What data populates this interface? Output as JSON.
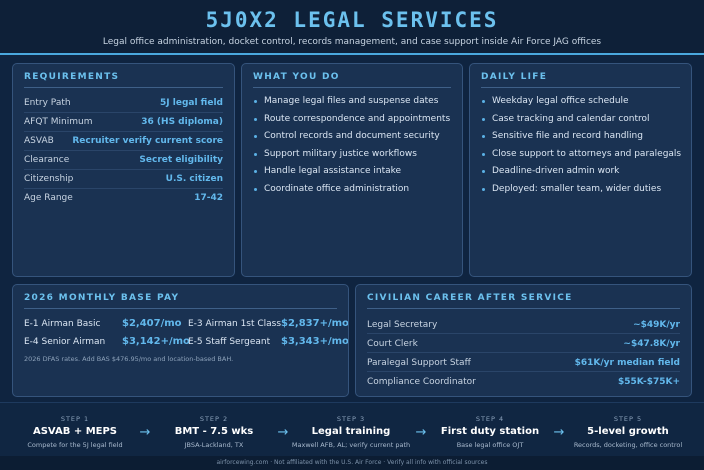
{
  "header": {
    "title": "5J0X2 LEGAL SERVICES",
    "subtitle": "Legal office administration, docket control, records management, and case support inside Air Force JAG offices"
  },
  "requirements": {
    "title": "REQUIREMENTS",
    "rows": [
      {
        "label": "Entry Path",
        "value": "5J legal field"
      },
      {
        "label": "AFQT Minimum",
        "value": "36 (HS diploma)"
      },
      {
        "label": "ASVAB",
        "value": "Recruiter verify current score"
      },
      {
        "label": "Clearance",
        "value": "Secret eligibility"
      },
      {
        "label": "Citizenship",
        "value": "U.S. citizen"
      },
      {
        "label": "Age Range",
        "value": "17-42"
      }
    ]
  },
  "what_you_do": {
    "title": "WHAT YOU DO",
    "items": [
      "Manage legal files and suspense dates",
      "Route correspondence and appointments",
      "Control records and document security",
      "Support military justice workflows",
      "Handle legal assistance intake",
      "Coordinate office administration"
    ]
  },
  "daily_life": {
    "title": "DAILY LIFE",
    "items": [
      "Weekday legal office schedule",
      "Case tracking and calendar control",
      "Sensitive file and record handling",
      "Close support to attorneys and paralegals",
      "Deadline-driven admin work",
      "Deployed: smaller team, wider duties"
    ]
  },
  "pay": {
    "title": "2026 MONTHLY BASE PAY",
    "entries": [
      {
        "label": "E-1 Airman Basic",
        "value": "$2,407/mo"
      },
      {
        "label": "E-3 Airman 1st Class",
        "value": "$2,837+/mo"
      },
      {
        "label": "E-4 Senior Airman",
        "value": "$3,142+/mo"
      },
      {
        "label": "E-5 Staff Sergeant",
        "value": "$3,343+/mo"
      }
    ],
    "note": "2026 DFAS rates. Add BAS $476.95/mo and location-based BAH."
  },
  "civilian": {
    "title": "CIVILIAN CAREER AFTER SERVICE",
    "rows": [
      {
        "label": "Legal Secretary",
        "value": "~$49K/yr"
      },
      {
        "label": "Court Clerk",
        "value": "~$47.8K/yr"
      },
      {
        "label": "Paralegal Support Staff",
        "value": "$61K/yr median field"
      },
      {
        "label": "Compliance Coordinator",
        "value": "$55K-$75K+"
      }
    ]
  },
  "steps": [
    {
      "num": "STEP 1",
      "title": "ASVAB + MEPS",
      "sub": "Compete for the 5J legal field"
    },
    {
      "num": "STEP 2",
      "title": "BMT - 7.5 wks",
      "sub": "JBSA-Lackland, TX"
    },
    {
      "num": "STEP 3",
      "title": "Legal training",
      "sub": "Maxwell AFB, AL; verify current path"
    },
    {
      "num": "STEP 4",
      "title": "First duty station",
      "sub": "Base legal office OJT"
    },
    {
      "num": "STEP 5",
      "title": "5-level growth",
      "sub": "Records, docketing, office control"
    }
  ],
  "arrow_glyph": "→",
  "footer": "airforcewing.com · Not affiliated with the U.S. Air Force · Verify all info with official sources",
  "colors": {
    "accent": "#6cc1ee",
    "background": "#0f2440",
    "card": "#1a3252"
  }
}
